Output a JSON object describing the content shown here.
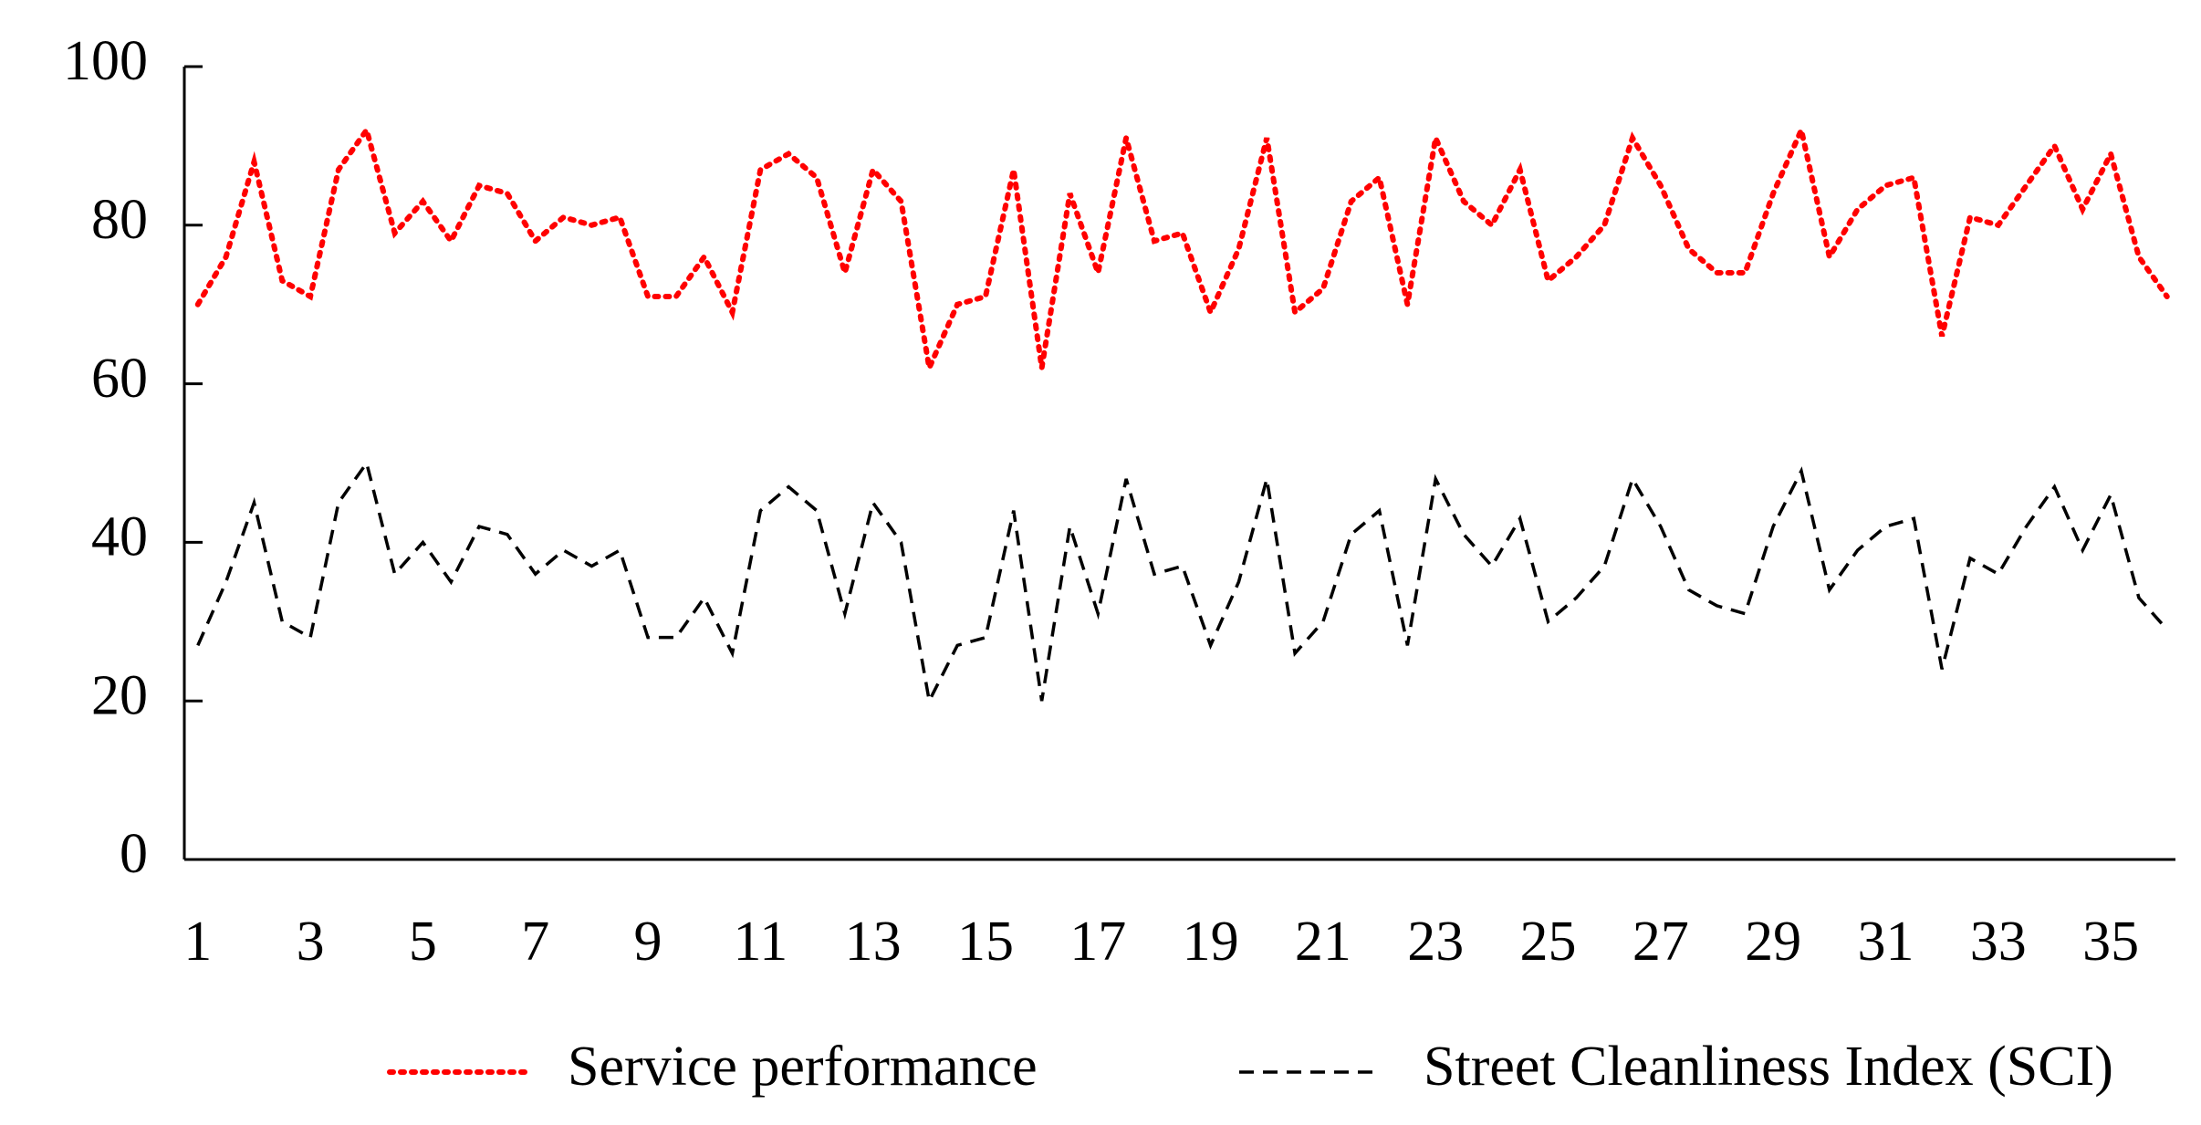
{
  "chart_data": {
    "type": "line",
    "x": [
      1,
      1.5,
      2,
      2.5,
      3,
      3.5,
      4,
      4.5,
      5,
      5.5,
      6,
      6.5,
      7,
      7.5,
      8,
      8.5,
      9,
      9.5,
      10,
      10.5,
      11,
      11.5,
      12,
      12.5,
      13,
      13.5,
      14,
      14.5,
      15,
      15.5,
      16,
      16.5,
      17,
      17.5,
      18,
      18.5,
      19,
      19.5,
      20,
      20.5,
      21,
      21.5,
      22,
      22.5,
      23,
      23.5,
      24,
      24.5,
      25,
      25.5,
      26,
      26.5,
      27,
      27.5,
      28,
      28.5,
      29,
      29.5,
      30,
      30.5,
      31,
      31.5,
      32,
      32.5,
      33,
      33.5,
      34,
      34.5,
      35,
      35.5,
      36
    ],
    "series": [
      {
        "name": "Service performance",
        "color": "#ff0000",
        "dash": "dotted",
        "values": [
          70,
          76,
          88,
          73,
          71,
          87,
          92,
          79,
          83,
          78,
          85,
          84,
          78,
          81,
          80,
          81,
          71,
          71,
          76,
          69,
          87,
          89,
          86,
          74,
          87,
          83,
          62,
          70,
          71,
          87,
          62,
          84,
          74,
          91,
          78,
          79,
          69,
          77,
          91,
          69,
          72,
          83,
          86,
          70,
          91,
          83,
          80,
          87,
          73,
          76,
          80,
          91,
          85,
          77,
          74,
          74,
          84,
          92,
          76,
          82,
          85,
          86,
          66,
          81,
          80,
          85,
          90,
          82,
          89,
          76,
          71
        ]
      },
      {
        "name": "Street Cleanliness Index (SCI)",
        "color": "#000000",
        "dash": "dashed",
        "values": [
          27,
          35,
          45,
          30,
          28,
          45,
          50,
          36,
          40,
          35,
          42,
          41,
          36,
          39,
          37,
          39,
          28,
          28,
          33,
          26,
          44,
          47,
          44,
          31,
          45,
          40,
          20,
          27,
          28,
          44,
          20,
          42,
          31,
          48,
          36,
          37,
          27,
          35,
          48,
          26,
          30,
          41,
          44,
          27,
          48,
          41,
          37,
          43,
          30,
          33,
          37,
          48,
          42,
          34,
          32,
          31,
          42,
          49,
          34,
          39,
          42,
          43,
          24,
          38,
          36,
          42,
          47,
          39,
          46,
          33,
          29
        ]
      }
    ],
    "xlim": [
      0.76,
      36.15
    ],
    "xticks": [
      1,
      3,
      5,
      7,
      9,
      11,
      13,
      15,
      17,
      19,
      21,
      23,
      25,
      27,
      29,
      31,
      33,
      35
    ],
    "ylim": [
      0,
      100
    ],
    "yticks": [
      0,
      20,
      40,
      60,
      80,
      100
    ],
    "legend": "bottom"
  }
}
